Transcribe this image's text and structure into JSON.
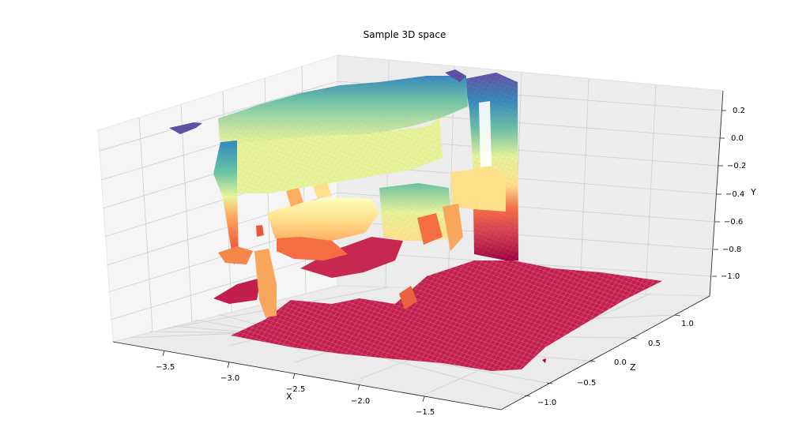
{
  "chart_data": {
    "type": "surface3d",
    "title": "Sample 3D space",
    "xlabel": "X",
    "ylabel": "Y",
    "zlabel": "Z",
    "x_ticks": [
      "−3.5",
      "−3.0",
      "−2.5",
      "−2.0",
      "−1.5"
    ],
    "z_ticks": [
      "1.0",
      "0.5",
      "0.0",
      "−0.5",
      "−1.0"
    ],
    "y_ticks": [
      "0.2",
      "0.0",
      "−0.2",
      "−0.4",
      "−0.6",
      "−0.8",
      "−1.0"
    ],
    "x_range": [
      -3.9,
      -1.2
    ],
    "z_range": [
      -1.3,
      1.3
    ],
    "y_range": [
      -1.1,
      0.3
    ],
    "colormap": "Spectral",
    "colormap_stops": [
      "#9e0142",
      "#d53e4f",
      "#f46d43",
      "#fdae61",
      "#fee08b",
      "#ffffbf",
      "#e6f598",
      "#abdda4",
      "#66c2a5",
      "#3288bd",
      "#5e4fa2"
    ],
    "grid": true,
    "pane_color": "#f2f2f2",
    "structures": [
      {
        "name": "floor",
        "y": -1.05
      },
      {
        "name": "left-pillar",
        "y_min": -1.0,
        "y_max": 0.15
      },
      {
        "name": "top-beam",
        "y_min": -0.2,
        "y_max": 0.25
      },
      {
        "name": "right-pillar",
        "y_min": -0.9,
        "y_max": 0.3
      },
      {
        "name": "center-block",
        "y_min": -0.6,
        "y_max": -0.3
      },
      {
        "name": "middle-band",
        "y_min": -0.7,
        "y_max": -0.45
      }
    ]
  }
}
